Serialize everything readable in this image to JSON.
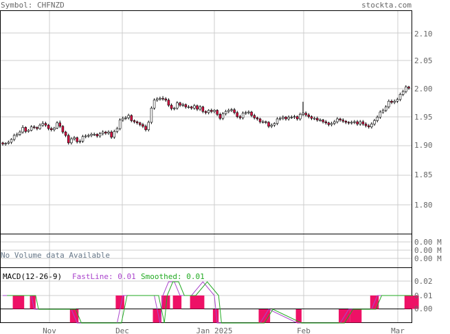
{
  "header": {
    "symbol": "Symbol: CHFNZD",
    "site": "stockta.com"
  },
  "price_panel": {
    "yticks": [
      "2.10",
      "2.05",
      "2.00",
      "1.95",
      "1.90",
      "1.85",
      "1.80"
    ]
  },
  "volume_panel": {
    "message": "No Volume data Available",
    "yticks": [
      "0.00 M",
      "0.00 M",
      "0.00 M"
    ]
  },
  "macd_panel": {
    "title": "MACD(12-26-9)",
    "fast_label": "FastLine: 0.01",
    "smoothed_label": "Smoothed: 0.01",
    "yticks": [
      "0.02",
      "0.01",
      "0.00"
    ]
  },
  "xaxis": {
    "labels": [
      "Nov",
      "Dec",
      "Jan 2025",
      "Feb",
      "Mar"
    ]
  },
  "colors": {
    "up_candle": "#ffffff",
    "down_candle": "#dd1144",
    "wick": "#000000",
    "grid": "#cccccc",
    "text": "#666666",
    "fast_line": "#aa44cc",
    "smoothed_line": "#22aa22",
    "histogram": "#ee1166"
  },
  "chart_data": {
    "type": "candlestick",
    "symbol": "CHFNZD",
    "ylim": [
      1.76,
      2.14
    ],
    "x": [
      "1",
      "2",
      "3",
      "4",
      "5",
      "6",
      "7",
      "8",
      "9",
      "10",
      "11",
      "12",
      "13",
      "14",
      "15",
      "16",
      "17",
      "18",
      "19",
      "20",
      "21",
      "22",
      "23",
      "24",
      "25",
      "26",
      "27",
      "28",
      "29",
      "30",
      "31",
      "32",
      "33",
      "34",
      "35",
      "36",
      "37",
      "38",
      "39",
      "40",
      "41",
      "42",
      "43",
      "44",
      "45",
      "46",
      "47",
      "48",
      "49",
      "50",
      "51",
      "52",
      "53",
      "54",
      "55",
      "56",
      "57",
      "58",
      "59",
      "60",
      "61",
      "62",
      "63",
      "64",
      "65",
      "66",
      "67",
      "68",
      "69",
      "70",
      "71",
      "72",
      "73",
      "74",
      "75",
      "76",
      "77",
      "78",
      "79",
      "80",
      "81",
      "82",
      "83",
      "84",
      "85",
      "86",
      "87",
      "88",
      "89",
      "90",
      "91",
      "92",
      "93",
      "94",
      "95",
      "96",
      "97",
      "98",
      "99",
      "100",
      "101",
      "102",
      "103",
      "104",
      "105",
      "106",
      "107",
      "108",
      "109",
      "110",
      "111",
      "112",
      "113",
      "114",
      "115",
      "116",
      "117",
      "118",
      "119",
      "120",
      "121",
      "122",
      "123",
      "124",
      "125",
      "126",
      "127",
      "128",
      "129",
      "130",
      "131",
      "132",
      "133",
      "134",
      "135",
      "136",
      "137",
      "138",
      "139",
      "140",
      "141",
      "142",
      "143"
    ],
    "open": [
      1.905,
      1.903,
      1.904,
      1.906,
      1.911,
      1.918,
      1.92,
      1.924,
      1.932,
      1.925,
      1.927,
      1.933,
      1.932,
      1.93,
      1.936,
      1.939,
      1.936,
      1.93,
      1.928,
      1.931,
      1.94,
      1.934,
      1.924,
      1.918,
      1.905,
      1.912,
      1.914,
      1.907,
      1.908,
      1.916,
      1.917,
      1.918,
      1.92,
      1.92,
      1.917,
      1.921,
      1.924,
      1.922,
      1.924,
      1.915,
      1.925,
      1.93,
      1.945,
      1.948,
      1.949,
      1.953,
      1.944,
      1.942,
      1.94,
      1.937,
      1.934,
      1.928,
      1.941,
      1.966,
      1.98,
      1.982,
      1.983,
      1.982,
      1.98,
      1.971,
      1.965,
      1.966,
      1.975,
      1.971,
      1.972,
      1.968,
      1.968,
      1.966,
      1.97,
      1.964,
      1.968,
      1.96,
      1.958,
      1.962,
      1.96,
      1.962,
      1.955,
      1.948,
      1.956,
      1.96,
      1.962,
      1.963,
      1.958,
      1.951,
      1.949,
      1.957,
      1.958,
      1.959,
      1.953,
      1.949,
      1.947,
      1.942,
      1.942,
      1.941,
      1.934,
      1.936,
      1.939,
      1.947,
      1.948,
      1.95,
      1.947,
      1.95,
      1.95,
      1.951,
      1.947,
      1.955,
      1.957,
      1.954,
      1.951,
      1.948,
      1.948,
      1.945,
      1.945,
      1.942,
      1.94,
      1.937,
      1.939,
      1.942,
      1.947,
      1.945,
      1.943,
      1.941,
      1.94,
      1.941,
      1.942,
      1.938,
      1.942,
      1.938,
      1.935,
      1.933,
      1.938,
      1.944,
      1.95,
      1.959,
      1.962,
      1.968,
      1.978,
      1.976,
      1.978,
      1.981,
      1.99,
      1.995,
      2.003
    ],
    "close": [
      1.903,
      1.904,
      1.906,
      1.911,
      1.918,
      1.92,
      1.924,
      1.932,
      1.925,
      1.927,
      1.933,
      1.932,
      1.93,
      1.936,
      1.939,
      1.936,
      1.93,
      1.928,
      1.931,
      1.94,
      1.934,
      1.924,
      1.918,
      1.905,
      1.912,
      1.914,
      1.907,
      1.908,
      1.916,
      1.917,
      1.918,
      1.92,
      1.92,
      1.917,
      1.921,
      1.924,
      1.922,
      1.924,
      1.915,
      1.925,
      1.93,
      1.945,
      1.948,
      1.949,
      1.953,
      1.944,
      1.942,
      1.94,
      1.937,
      1.934,
      1.928,
      1.941,
      1.966,
      1.98,
      1.982,
      1.983,
      1.982,
      1.98,
      1.971,
      1.965,
      1.966,
      1.975,
      1.971,
      1.972,
      1.968,
      1.968,
      1.966,
      1.97,
      1.964,
      1.968,
      1.96,
      1.958,
      1.962,
      1.96,
      1.962,
      1.955,
      1.948,
      1.956,
      1.96,
      1.962,
      1.963,
      1.958,
      1.951,
      1.949,
      1.957,
      1.958,
      1.959,
      1.953,
      1.949,
      1.947,
      1.942,
      1.942,
      1.941,
      1.934,
      1.936,
      1.939,
      1.947,
      1.948,
      1.95,
      1.947,
      1.95,
      1.95,
      1.951,
      1.947,
      1.955,
      1.957,
      1.954,
      1.951,
      1.948,
      1.948,
      1.945,
      1.945,
      1.942,
      1.94,
      1.937,
      1.939,
      1.942,
      1.947,
      1.945,
      1.943,
      1.941,
      1.94,
      1.941,
      1.942,
      1.938,
      1.942,
      1.938,
      1.935,
      1.933,
      1.938,
      1.944,
      1.95,
      1.959,
      1.962,
      1.968,
      1.978,
      1.976,
      1.978,
      1.981,
      1.99,
      1.995,
      2.003,
      2.001
    ],
    "high": [
      1.907,
      1.906,
      1.909,
      1.913,
      1.921,
      1.923,
      1.927,
      1.936,
      1.934,
      1.929,
      1.936,
      1.936,
      1.934,
      1.939,
      1.943,
      1.942,
      1.938,
      1.933,
      1.933,
      1.943,
      1.944,
      1.936,
      1.926,
      1.921,
      1.915,
      1.917,
      1.916,
      1.911,
      1.919,
      1.92,
      1.921,
      1.923,
      1.923,
      1.922,
      1.924,
      1.927,
      1.926,
      1.927,
      1.927,
      1.928,
      1.933,
      1.948,
      1.951,
      1.952,
      1.956,
      1.955,
      1.946,
      1.944,
      1.942,
      1.94,
      1.937,
      1.944,
      1.969,
      1.983,
      1.985,
      1.986,
      1.987,
      1.985,
      1.983,
      1.974,
      1.968,
      1.978,
      1.977,
      1.975,
      1.974,
      1.971,
      1.97,
      1.973,
      1.972,
      1.971,
      1.97,
      1.962,
      1.964,
      1.965,
      1.964,
      1.964,
      1.958,
      1.959,
      1.963,
      1.965,
      1.966,
      1.966,
      1.961,
      1.954,
      1.96,
      1.961,
      1.962,
      1.961,
      1.956,
      1.951,
      1.949,
      1.945,
      1.944,
      1.943,
      1.939,
      1.941,
      1.95,
      1.951,
      1.953,
      1.952,
      1.953,
      1.953,
      1.954,
      1.953,
      1.958,
      1.977,
      1.96,
      1.957,
      1.953,
      1.951,
      1.951,
      1.948,
      1.947,
      1.945,
      1.942,
      1.942,
      1.945,
      1.95,
      1.949,
      1.948,
      1.945,
      1.943,
      1.944,
      1.945,
      1.945,
      1.945,
      1.945,
      1.941,
      1.938,
      1.941,
      1.947,
      1.953,
      1.962,
      1.965,
      1.971,
      1.981,
      1.981,
      1.981,
      1.984,
      1.993,
      1.998,
      2.006,
      2.005
    ],
    "low": [
      1.9,
      1.9,
      1.902,
      1.903,
      1.908,
      1.915,
      1.917,
      1.921,
      1.922,
      1.923,
      1.925,
      1.929,
      1.927,
      1.928,
      1.933,
      1.933,
      1.927,
      1.925,
      1.925,
      1.929,
      1.931,
      1.921,
      1.915,
      1.902,
      1.902,
      1.909,
      1.904,
      1.904,
      1.905,
      1.913,
      1.914,
      1.915,
      1.917,
      1.914,
      1.914,
      1.918,
      1.919,
      1.919,
      1.912,
      1.912,
      1.922,
      1.927,
      1.942,
      1.945,
      1.946,
      1.941,
      1.939,
      1.937,
      1.934,
      1.931,
      1.925,
      1.925,
      1.938,
      1.963,
      1.977,
      1.979,
      1.979,
      1.977,
      1.968,
      1.962,
      1.962,
      1.963,
      1.968,
      1.968,
      1.965,
      1.965,
      1.963,
      1.963,
      1.961,
      1.961,
      1.957,
      1.955,
      1.955,
      1.957,
      1.957,
      1.952,
      1.945,
      1.945,
      1.953,
      1.957,
      1.959,
      1.955,
      1.948,
      1.946,
      1.946,
      1.954,
      1.955,
      1.95,
      1.946,
      1.944,
      1.939,
      1.939,
      1.938,
      1.931,
      1.931,
      1.933,
      1.936,
      1.944,
      1.945,
      1.944,
      1.944,
      1.947,
      1.947,
      1.944,
      1.944,
      1.952,
      1.951,
      1.948,
      1.945,
      1.945,
      1.942,
      1.942,
      1.939,
      1.937,
      1.934,
      1.934,
      1.936,
      1.939,
      1.942,
      1.94,
      1.938,
      1.937,
      1.937,
      1.938,
      1.935,
      1.935,
      1.935,
      1.932,
      1.93,
      1.93,
      1.935,
      1.941,
      1.947,
      1.956,
      1.959,
      1.965,
      1.973,
      1.973,
      1.975,
      1.978,
      1.987,
      1.992,
      1.998
    ]
  },
  "macd_data": {
    "hist_pos_ranges": [
      [
        4,
        7
      ],
      [
        10,
        11
      ],
      [
        40,
        42
      ],
      [
        56,
        58
      ],
      [
        60,
        62
      ],
      [
        66,
        70
      ],
      [
        129,
        131
      ],
      [
        141,
        145
      ]
    ],
    "hist_neg_ranges": [
      [
        24,
        26
      ],
      [
        53,
        55
      ],
      [
        74,
        75
      ],
      [
        90,
        93
      ],
      [
        103,
        104
      ],
      [
        118,
        121
      ],
      [
        122,
        125
      ]
    ]
  }
}
